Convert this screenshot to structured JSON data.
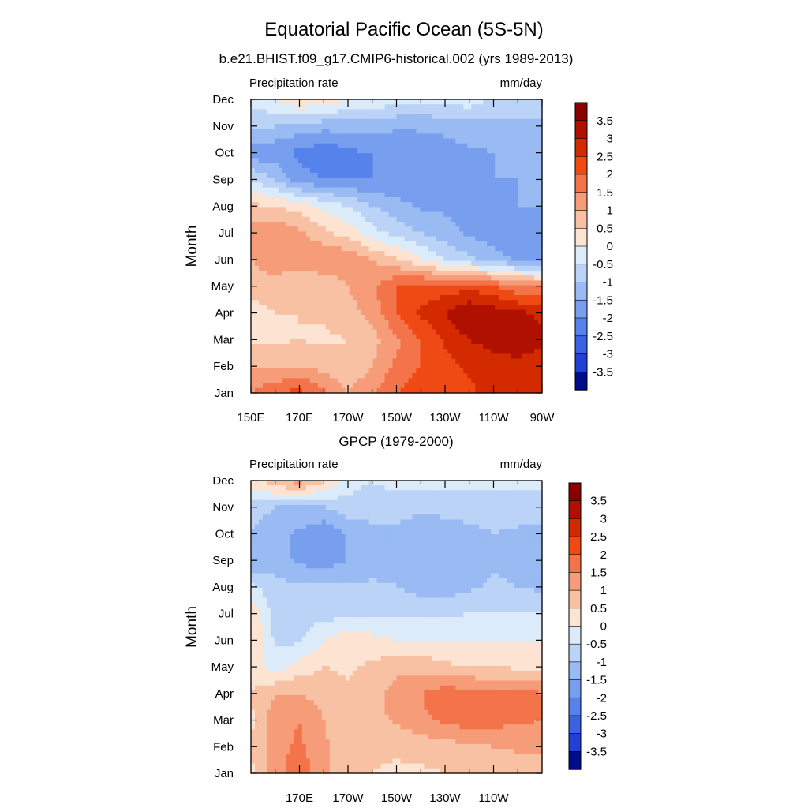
{
  "figure": {
    "title": "Equatorial Pacific Ocean (5S-5N)"
  },
  "chart_data": [
    {
      "type": "heatmap",
      "title": "b.e21.BHIST.f09_g17.CMIP6-historical.002 (yrs 1989-2013)",
      "left_string": "Precipitation rate",
      "right_string": "mm/day",
      "ylabel": "Month",
      "xlabel": "",
      "x_ticks": [
        "150E",
        "170E",
        "170W",
        "150W",
        "130W",
        "110W",
        "90W"
      ],
      "x_tick_lons": [
        150,
        170,
        190,
        210,
        230,
        250,
        270
      ],
      "xlim": [
        150,
        270
      ],
      "y_ticks": [
        "Jan",
        "Feb",
        "Mar",
        "Apr",
        "May",
        "Jun",
        "Jul",
        "Aug",
        "Sep",
        "Oct",
        "Nov",
        "Dec"
      ],
      "ylim": [
        1,
        12
      ],
      "colorbar": {
        "labels": [
          "3.5",
          "3",
          "2.5",
          "2",
          "1.5",
          "1",
          "0.5",
          "0",
          "-0.5",
          "-1",
          "-1.5",
          "-2",
          "-2.5",
          "-3",
          "-3.5"
        ],
        "levels": [
          3.5,
          3,
          2.5,
          2,
          1.5,
          1,
          0.5,
          0,
          -0.5,
          -1,
          -1.5,
          -2,
          -2.5,
          -3,
          -3.5
        ],
        "colors": [
          "#8B0000",
          "#B01000",
          "#D42A00",
          "#F04A14",
          "#F3734A",
          "#F69C78",
          "#F8C1A3",
          "#FDE4D2",
          "#DCEBFA",
          "#BBD3F7",
          "#99BAF3",
          "#779FEE",
          "#5582EB",
          "#3B62E5",
          "#2141D6",
          "#000C8A"
        ]
      },
      "lons": [
        150,
        160,
        170,
        180,
        190,
        200,
        210,
        220,
        230,
        240,
        250,
        260,
        270
      ],
      "months": [
        "Jan",
        "Feb",
        "Mar",
        "Apr",
        "May",
        "Jun",
        "Jul",
        "Aug",
        "Sep",
        "Oct",
        "Nov",
        "Dec"
      ],
      "z": [
        [
          1.5,
          2.0,
          2.2,
          1.6,
          1.0,
          1.4,
          2.0,
          2.3,
          2.3,
          2.4,
          2.7,
          2.6,
          2.5
        ],
        [
          0.9,
          0.8,
          1.0,
          0.8,
          0.6,
          1.0,
          1.6,
          2.0,
          2.3,
          2.6,
          2.8,
          2.8,
          2.7
        ],
        [
          0.4,
          0.4,
          0.5,
          0.4,
          0.5,
          0.8,
          1.4,
          2.0,
          2.6,
          3.0,
          3.2,
          3.4,
          3.1
        ],
        [
          0.2,
          0.5,
          0.5,
          0.6,
          0.8,
          1.2,
          2.0,
          2.6,
          3.0,
          3.5,
          3.3,
          3.1,
          2.9
        ],
        [
          0.8,
          0.9,
          0.5,
          0.6,
          1.0,
          1.4,
          2.0,
          2.2,
          2.2,
          2.3,
          2.0,
          1.6,
          1.4
        ],
        [
          1.0,
          1.2,
          1.3,
          1.5,
          1.4,
          1.0,
          0.6,
          0.0,
          -0.5,
          -0.9,
          -1.3,
          -1.6,
          -1.7
        ],
        [
          1.2,
          1.4,
          1.1,
          0.6,
          0.3,
          -0.3,
          -0.7,
          -1.0,
          -1.3,
          -1.6,
          -1.8,
          -1.8,
          -1.8
        ],
        [
          0.6,
          0.5,
          0.3,
          -0.1,
          -0.5,
          -1.0,
          -1.3,
          -1.6,
          -1.6,
          -1.7,
          -1.6,
          -1.5,
          -1.5
        ],
        [
          -0.5,
          -1.0,
          -1.8,
          -2.0,
          -2.0,
          -2.0,
          -1.9,
          -1.9,
          -1.8,
          -1.6,
          -1.5,
          -1.5,
          -1.5
        ],
        [
          -1.8,
          -1.9,
          -2.1,
          -2.4,
          -2.1,
          -2.0,
          -2.0,
          -1.9,
          -1.8,
          -1.6,
          -1.5,
          -1.5,
          -1.4
        ],
        [
          -0.9,
          -1.0,
          -1.2,
          -1.3,
          -1.3,
          -1.3,
          -1.4,
          -1.4,
          -1.3,
          -1.2,
          -1.2,
          -1.1,
          -1.1
        ],
        [
          -0.3,
          0.0,
          0.5,
          0.4,
          0.0,
          0.0,
          -0.3,
          -0.4,
          -0.3,
          -0.2,
          -0.6,
          -0.7,
          -0.6
        ]
      ]
    },
    {
      "type": "heatmap",
      "title": "GPCP (1979-2000)",
      "left_string": "Precipitation rate",
      "right_string": "mm/day",
      "ylabel": "Month",
      "xlabel": "",
      "x_ticks": [
        "170E",
        "170W",
        "150W",
        "130W",
        "110W"
      ],
      "x_tick_lons": [
        170,
        190,
        210,
        230,
        250
      ],
      "xlim": [
        150,
        270
      ],
      "y_ticks": [
        "Jan",
        "Feb",
        "Mar",
        "Apr",
        "May",
        "Jun",
        "Jul",
        "Aug",
        "Sep",
        "Oct",
        "Nov",
        "Dec"
      ],
      "ylim": [
        1,
        12
      ],
      "colorbar": {
        "labels": [
          "3.5",
          "3",
          "2.5",
          "2",
          "1.5",
          "1",
          "0.5",
          "0",
          "-0.5",
          "-1",
          "-1.5",
          "-2",
          "-2.5",
          "-3",
          "-3.5"
        ],
        "levels": [
          3.5,
          3,
          2.5,
          2,
          1.5,
          1,
          0.5,
          0,
          -0.5,
          -1,
          -1.5,
          -2,
          -2.5,
          -3,
          -3.5
        ],
        "colors": [
          "#8B0000",
          "#B01000",
          "#D42A00",
          "#F04A14",
          "#F3734A",
          "#F69C78",
          "#F8C1A3",
          "#FDE4D2",
          "#DCEBFA",
          "#BBD3F7",
          "#99BAF3",
          "#779FEE",
          "#5582EB",
          "#3B62E5",
          "#2141D6",
          "#000C8A"
        ]
      },
      "lons": [
        150,
        160,
        170,
        180,
        190,
        200,
        210,
        220,
        230,
        240,
        250,
        260,
        270
      ],
      "months": [
        "Jan",
        "Feb",
        "Mar",
        "Apr",
        "May",
        "Jun",
        "Jul",
        "Aug",
        "Sep",
        "Oct",
        "Nov",
        "Dec"
      ],
      "z": [
        [
          0.4,
          1.3,
          1.8,
          1.2,
          0.6,
          0.5,
          0.4,
          0.4,
          0.5,
          0.5,
          0.6,
          0.6,
          0.6
        ],
        [
          0.5,
          1.3,
          1.6,
          1.1,
          0.6,
          0.6,
          0.6,
          0.7,
          0.8,
          0.9,
          1.0,
          1.1,
          1.1
        ],
        [
          0.4,
          1.3,
          1.5,
          1.0,
          0.7,
          0.8,
          1.1,
          1.4,
          1.6,
          1.8,
          1.7,
          1.6,
          1.5
        ],
        [
          0.5,
          1.0,
          1.0,
          0.8,
          0.6,
          0.7,
          1.3,
          1.5,
          1.8,
          1.7,
          1.6,
          1.7,
          1.5
        ],
        [
          0.3,
          -0.3,
          0.2,
          0.5,
          0.4,
          0.6,
          0.8,
          0.8,
          0.6,
          0.5,
          0.5,
          0.4,
          0.4
        ],
        [
          0.5,
          -0.6,
          -0.6,
          0.0,
          0.4,
          0.2,
          0.0,
          0.0,
          0.0,
          0.0,
          0.0,
          0.0,
          0.0
        ],
        [
          0.5,
          -0.8,
          -0.7,
          -0.7,
          -0.7,
          -0.7,
          -0.6,
          -0.6,
          -0.6,
          -0.5,
          -0.5,
          -0.5,
          -0.5
        ],
        [
          -0.4,
          -0.8,
          -0.9,
          -0.9,
          -0.9,
          -0.9,
          -1.0,
          -1.2,
          -1.3,
          -1.1,
          -0.9,
          -1.0,
          -1.1
        ],
        [
          -1.4,
          -1.3,
          -1.6,
          -1.8,
          -1.5,
          -1.3,
          -1.1,
          -1.4,
          -1.4,
          -1.3,
          -1.1,
          -1.2,
          -1.3
        ],
        [
          -1.0,
          -1.3,
          -1.6,
          -1.9,
          -1.4,
          -1.2,
          -1.1,
          -1.3,
          -1.3,
          -1.2,
          -1.0,
          -1.1,
          -1.2
        ],
        [
          -0.8,
          -1.0,
          -1.0,
          -1.0,
          -0.7,
          -0.7,
          -0.8,
          -0.9,
          -0.8,
          -0.7,
          -0.7,
          -0.7,
          -0.7
        ],
        [
          0.3,
          0.9,
          1.3,
          0.6,
          -0.3,
          -0.5,
          -0.3,
          -0.2,
          -0.3,
          -0.4,
          -0.4,
          -0.4,
          -0.4
        ]
      ]
    }
  ]
}
